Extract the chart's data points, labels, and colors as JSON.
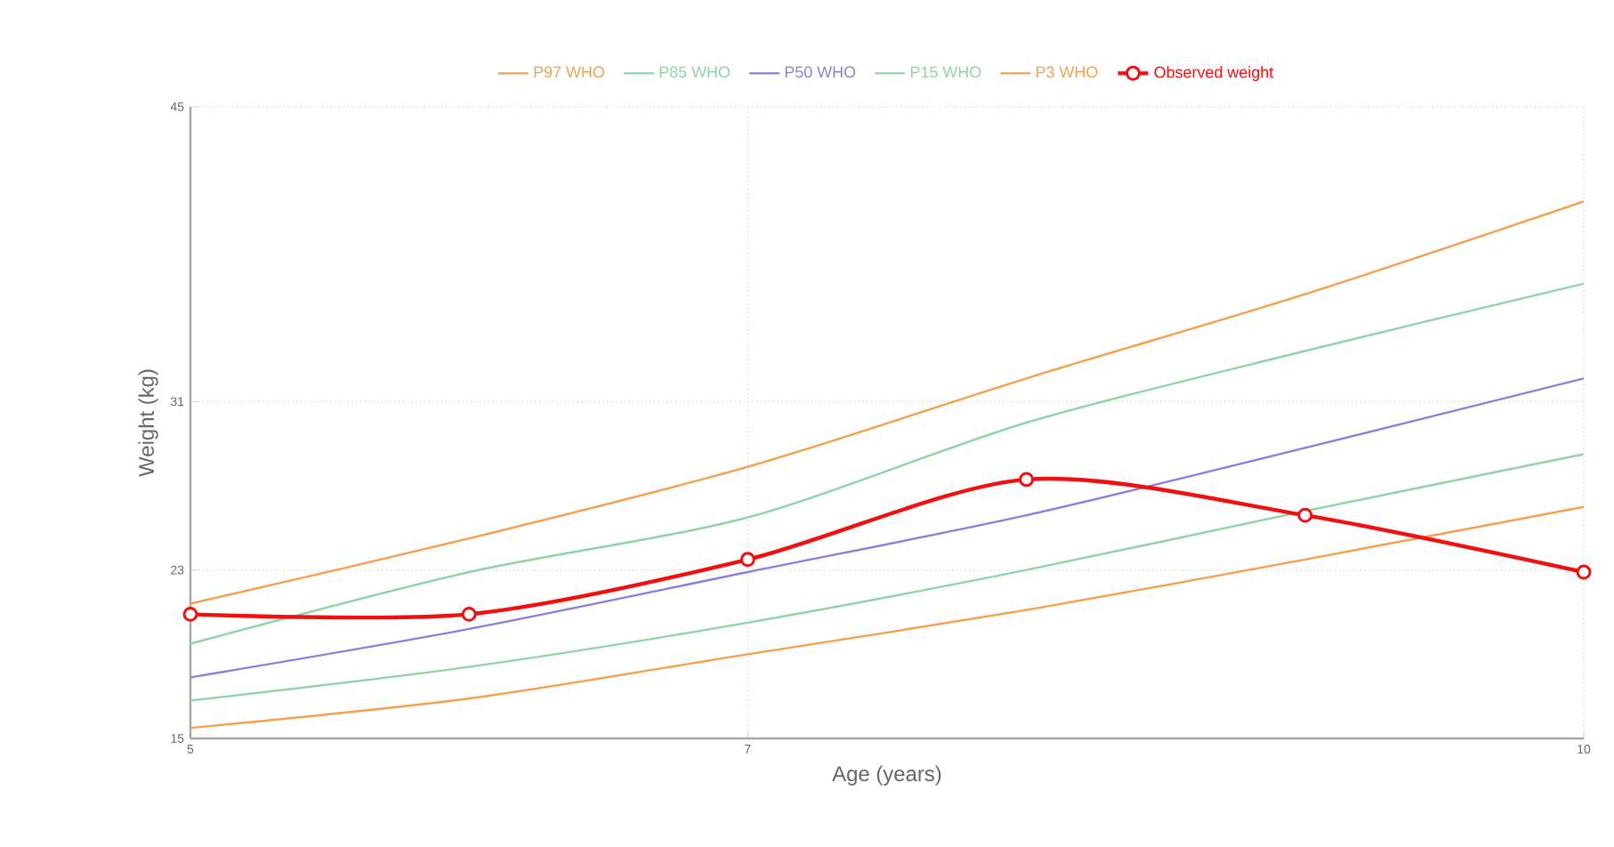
{
  "chart_data": {
    "type": "line",
    "xlabel": "Age (years)",
    "ylabel": "Weight (kg)",
    "x": [
      5,
      6,
      7,
      8,
      9,
      10
    ],
    "xlim": [
      5,
      10
    ],
    "ylim": [
      15,
      45
    ],
    "xticks": [
      5,
      7,
      10
    ],
    "yticks": [
      15,
      23,
      31,
      45
    ],
    "grid": true,
    "legend": "top",
    "series": [
      {
        "name": "P97 WHO",
        "color": "#f5a04c",
        "marker": "none",
        "values": [
          21.4,
          24.5,
          27.9,
          32.1,
          36.1,
          40.5
        ]
      },
      {
        "name": "P85 WHO",
        "color": "#8fd4a2",
        "marker": "none",
        "values": [
          19.5,
          22.9,
          25.5,
          30.0,
          33.4,
          36.6
        ]
      },
      {
        "name": "P50 WHO",
        "color": "#8a7fe0",
        "marker": "none",
        "values": [
          17.9,
          20.2,
          22.9,
          25.6,
          28.8,
          32.1
        ]
      },
      {
        "name": "P15 WHO",
        "color": "#8fd4a2",
        "marker": "none",
        "values": [
          16.8,
          18.4,
          20.5,
          23.0,
          25.8,
          28.5
        ]
      },
      {
        "name": "P3 WHO",
        "color": "#f5a04c",
        "marker": "none",
        "values": [
          15.5,
          16.9,
          19.0,
          21.1,
          23.5,
          26.0
        ]
      },
      {
        "name": "Observed weight",
        "color": "#f01010",
        "marker": "circle",
        "values": [
          20.9,
          20.9,
          23.5,
          27.3,
          25.6,
          22.9
        ]
      }
    ]
  }
}
